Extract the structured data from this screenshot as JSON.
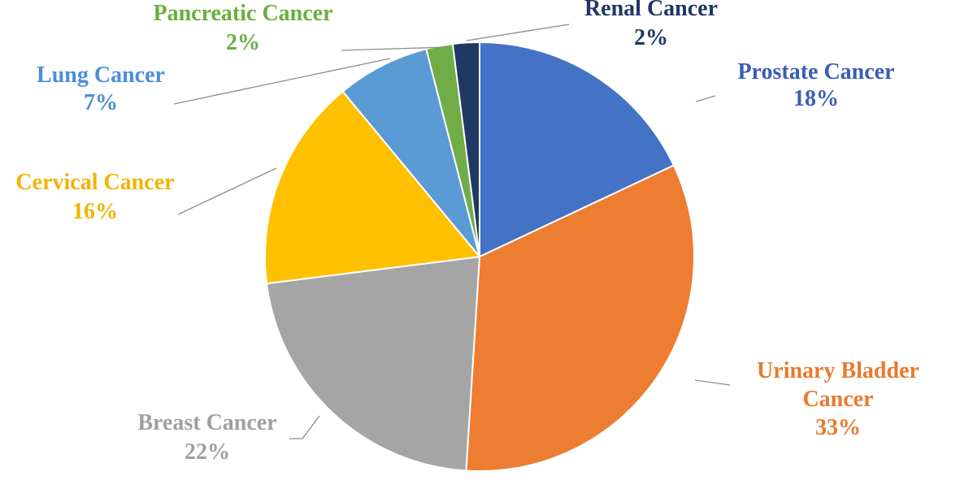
{
  "chart_data": {
    "type": "pie",
    "title": "",
    "slices": [
      {
        "label": "Prostate Cancer",
        "lines": [
          "Prostate Cancer"
        ],
        "value": 18,
        "value_label": "18%",
        "color": "#4472C4"
      },
      {
        "label": "Urinary Bladder Cancer",
        "lines": [
          "Urinary  Bladder",
          "Cancer"
        ],
        "value": 33,
        "value_label": "33%",
        "color": "#ED7D31"
      },
      {
        "label": "Breast Cancer",
        "lines": [
          "Breast Cancer"
        ],
        "value": 22,
        "value_label": "22%",
        "color": "#A5A5A5"
      },
      {
        "label": "Cervical Cancer",
        "lines": [
          "Cervical  Cancer"
        ],
        "value": 16,
        "value_label": "16%",
        "color": "#FFC000"
      },
      {
        "label": "Lung Cancer",
        "lines": [
          "Lung  Cancer"
        ],
        "value": 7,
        "value_label": "7%",
        "color": "#5B9BD5"
      },
      {
        "label": "Pancreatic Cancer",
        "lines": [
          "Pancreatic  Cancer"
        ],
        "value": 2,
        "value_label": "2%",
        "color": "#70AD47"
      },
      {
        "label": "Renal Cancer",
        "lines": [
          "Renal Cancer"
        ],
        "value": 2,
        "value_label": "2%",
        "color": "#203864"
      }
    ],
    "label_colors": {
      "Prostate Cancer": "#3A5DB6",
      "Urinary Bladder Cancer": "#E87A2B",
      "Breast Cancer": "#A0A0A0",
      "Cervical Cancer": "#F2B400",
      "Lung Cancer": "#4A8ED6",
      "Pancreatic Cancer": "#6AAE3E",
      "Renal Cancer": "#1F3665"
    },
    "leader_line_color": "#8C8C8C",
    "background": "#FFFFFF"
  }
}
